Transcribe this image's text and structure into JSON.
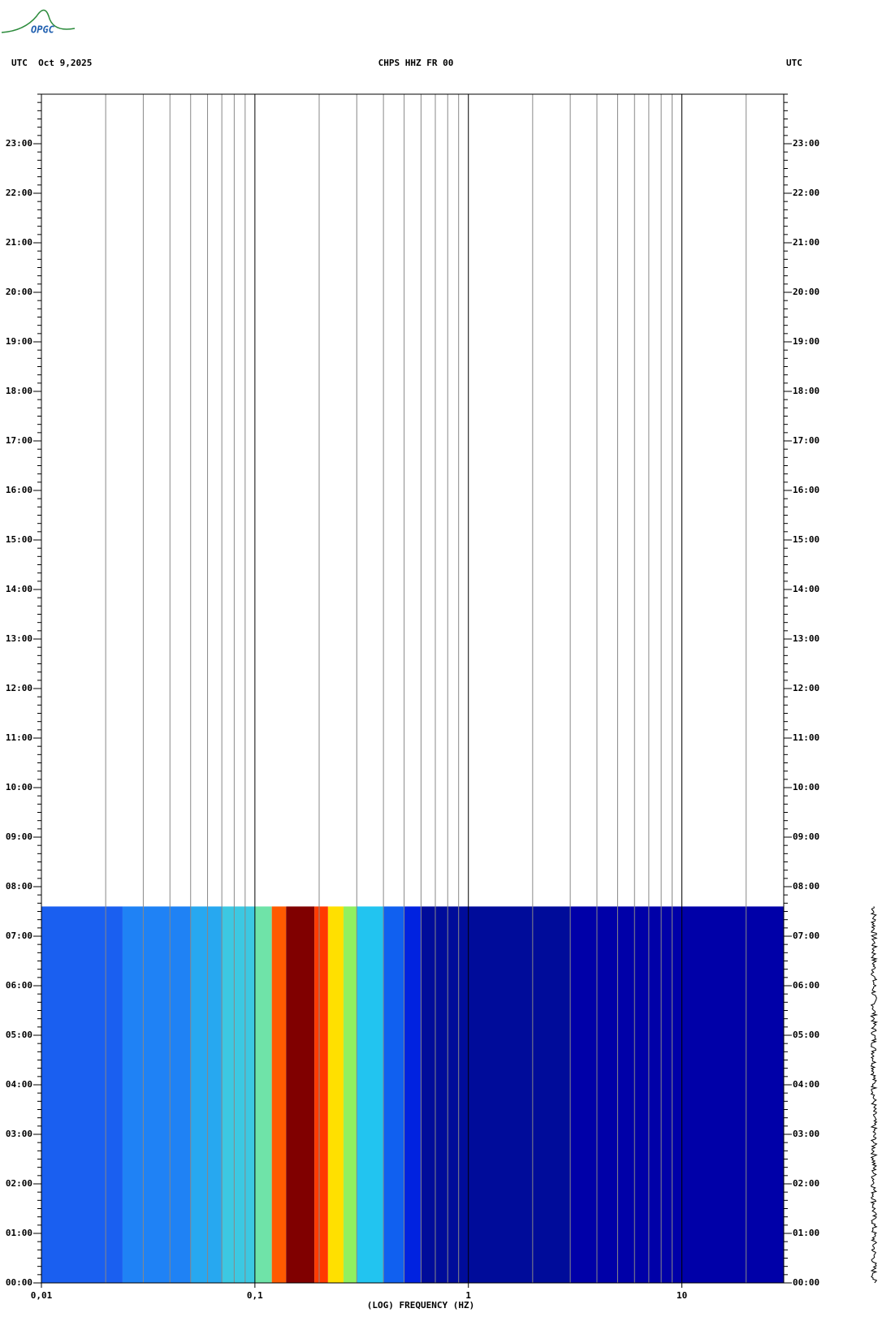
{
  "logo": "OPGC",
  "chart_data": {
    "type": "spectrogram",
    "title": "CHPS HHZ FR 00",
    "left_header": "UTC  Oct 9,2025",
    "right_header": "UTC",
    "xlabel": "(LOG) FREQUENCY (HZ)",
    "xscale": "log",
    "xlim": [
      0.01,
      30
    ],
    "xticks": [
      {
        "value": 0.01,
        "label": "0,01"
      },
      {
        "value": 0.1,
        "label": "0,1"
      },
      1,
      10
    ],
    "xgrid": [
      0.02,
      0.03,
      0.04,
      0.05,
      0.06,
      0.07,
      0.08,
      0.09,
      0.2,
      0.3,
      0.4,
      0.5,
      0.6,
      0.7,
      0.8,
      0.9,
      2,
      3,
      4,
      5,
      6,
      7,
      8,
      9,
      20
    ],
    "ylim": [
      0,
      24
    ],
    "yticks": [
      {
        "value": 0,
        "label": "00:00"
      },
      {
        "value": 1,
        "label": "01:00"
      },
      {
        "value": 2,
        "label": "02:00"
      },
      {
        "value": 3,
        "label": "03:00"
      },
      {
        "value": 4,
        "label": "04:00"
      },
      {
        "value": 5,
        "label": "05:00"
      },
      {
        "value": 6,
        "label": "06:00"
      },
      {
        "value": 7,
        "label": "07:00"
      },
      {
        "value": 8,
        "label": "08:00"
      },
      {
        "value": 9,
        "label": "09:00"
      },
      {
        "value": 10,
        "label": "10:00"
      },
      {
        "value": 11,
        "label": "11:00"
      },
      {
        "value": 12,
        "label": "12:00"
      },
      {
        "value": 13,
        "label": "13:00"
      },
      {
        "value": 14,
        "label": "14:00"
      },
      {
        "value": 15,
        "label": "15:00"
      },
      {
        "value": 16,
        "label": "16:00"
      },
      {
        "value": 17,
        "label": "17:00"
      },
      {
        "value": 18,
        "label": "18:00"
      },
      {
        "value": 19,
        "label": "19:00"
      },
      {
        "value": 20,
        "label": "20:00"
      },
      {
        "value": 21,
        "label": "21:00"
      },
      {
        "value": 22,
        "label": "22:00"
      },
      {
        "value": 23,
        "label": "23:00"
      }
    ],
    "yminor_per_major": 6,
    "data_time": [
      0,
      7.6
    ],
    "bins": [
      0.01,
      0.024,
      0.05,
      0.07,
      0.1,
      0.12,
      0.14,
      0.19,
      0.22,
      0.26,
      0.3,
      0.4,
      0.5,
      0.6,
      3,
      30
    ],
    "colors": [
      "#1a5ff0",
      "#1f82f5",
      "#27a8f0",
      "#3cc8e2",
      "#6fe3a8",
      "#ff5a00",
      "#800000",
      "#ff3a00",
      "#ffe000",
      "#90f060",
      "#22c4f0",
      "#1060f0",
      "#0022e0",
      "#000c9a",
      "#0000a8"
    ]
  }
}
